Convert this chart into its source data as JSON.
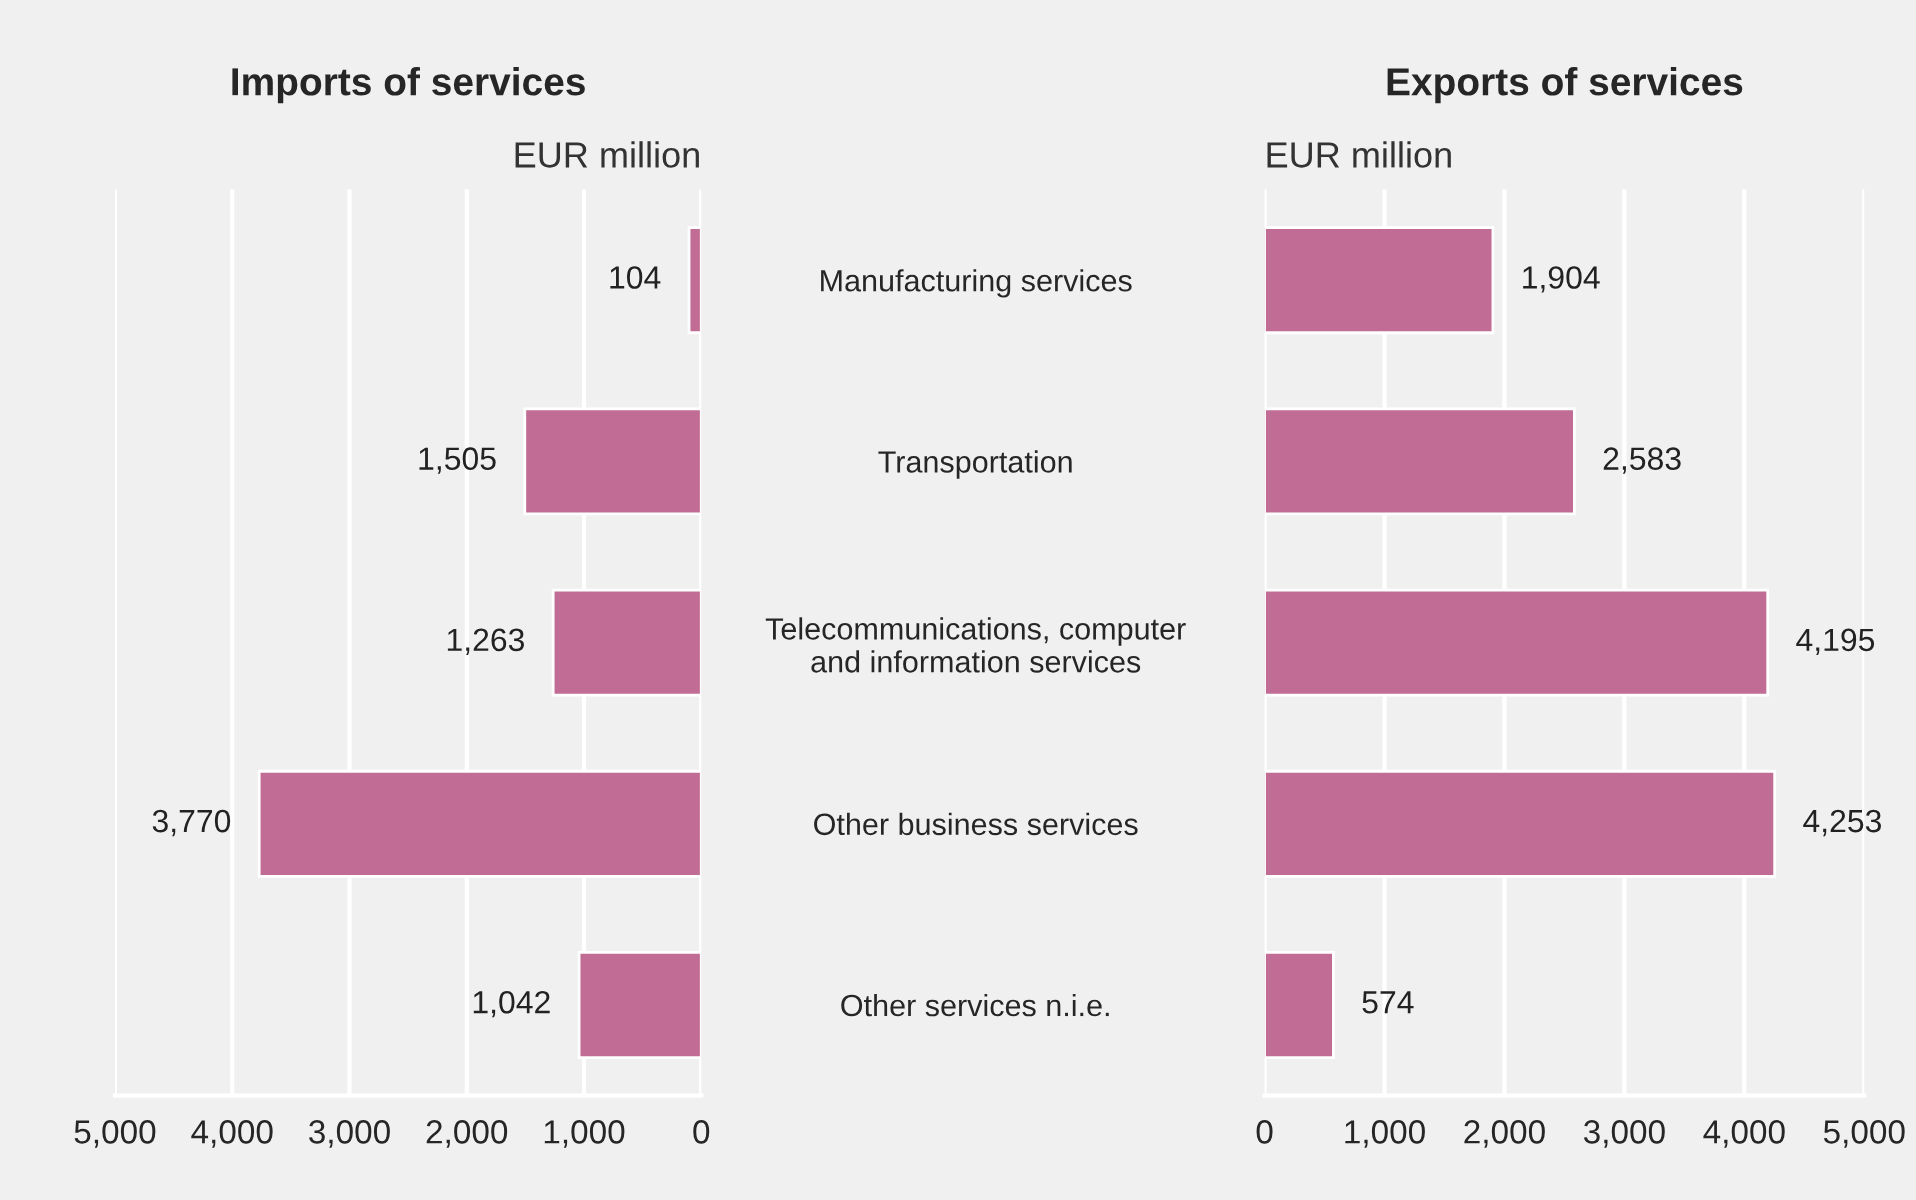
{
  "chart_data": [
    {
      "type": "bar",
      "orientation": "horizontal",
      "title": "Imports of services",
      "xlabel": "EUR million",
      "categories": [
        null,
        null,
        null,
        null,
        null
      ],
      "series": [
        {
          "color": "#c06c95",
          "values": [
            104,
            1505,
            1263,
            3770,
            1042
          ],
          "value_labels": [
            "104",
            "1,505",
            "1,263",
            "3,770",
            "1,042"
          ]
        }
      ],
      "xlim": [
        5000,
        0
      ],
      "xticks": [
        {
          "value": 5000,
          "label": "5,000"
        },
        {
          "value": 4000,
          "label": "4,000"
        },
        {
          "value": 3000,
          "label": "3,000"
        },
        {
          "value": 2000,
          "label": "2,000"
        },
        {
          "value": 1000,
          "label": "1,000"
        },
        0
      ],
      "grid": "x",
      "tick_labels": "x"
    },
    {
      "type": "bar",
      "orientation": "horizontal",
      "title": "Exports of services",
      "xlabel": "EUR million",
      "categories": [
        "Manufacturing services",
        "Transportation",
        "Telecommunications, computer\nand information services",
        "Other business services",
        "Other services n.i.e."
      ],
      "series": [
        {
          "color": "#c06c95",
          "values": [
            1904,
            2583,
            4195,
            4253,
            574
          ],
          "value_labels": [
            "1,904",
            "2,583",
            "4,195",
            "4,253",
            "574"
          ]
        }
      ],
      "xlim": [
        0,
        5000
      ],
      "xticks": [
        0,
        {
          "value": 1000,
          "label": "1,000"
        },
        {
          "value": 2000,
          "label": "2,000"
        },
        {
          "value": 3000,
          "label": "3,000"
        },
        {
          "value": 4000,
          "label": "4,000"
        },
        {
          "value": 5000,
          "label": "5,000"
        }
      ],
      "grid": "x"
    }
  ]
}
